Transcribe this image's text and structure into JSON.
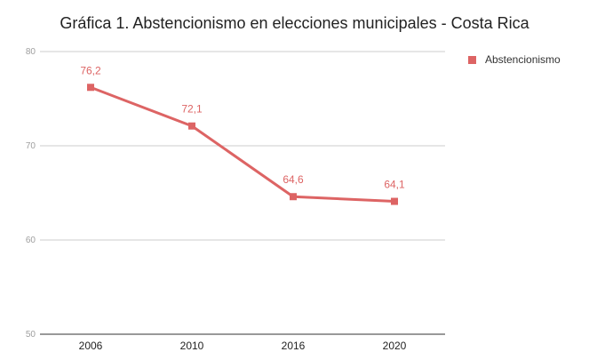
{
  "chart_data": {
    "type": "line",
    "title": "Gráfica 1. Abstencionismo en elecciones municipales - Costa Rica",
    "categories": [
      "2006",
      "2010",
      "2016",
      "2020"
    ],
    "series": [
      {
        "name": "Abstencionismo",
        "values": [
          76.2,
          72.1,
          64.6,
          64.1
        ],
        "labels": [
          "76,2",
          "72,1",
          "64,6",
          "64,1"
        ]
      }
    ],
    "ylim": [
      50,
      80
    ],
    "yticks": [
      "50",
      "60",
      "70",
      "80"
    ],
    "grid": true,
    "legend_position": "top-right",
    "colors": {
      "series": "#dd6464",
      "grid": "#cccccc",
      "axis": "#333333"
    }
  }
}
